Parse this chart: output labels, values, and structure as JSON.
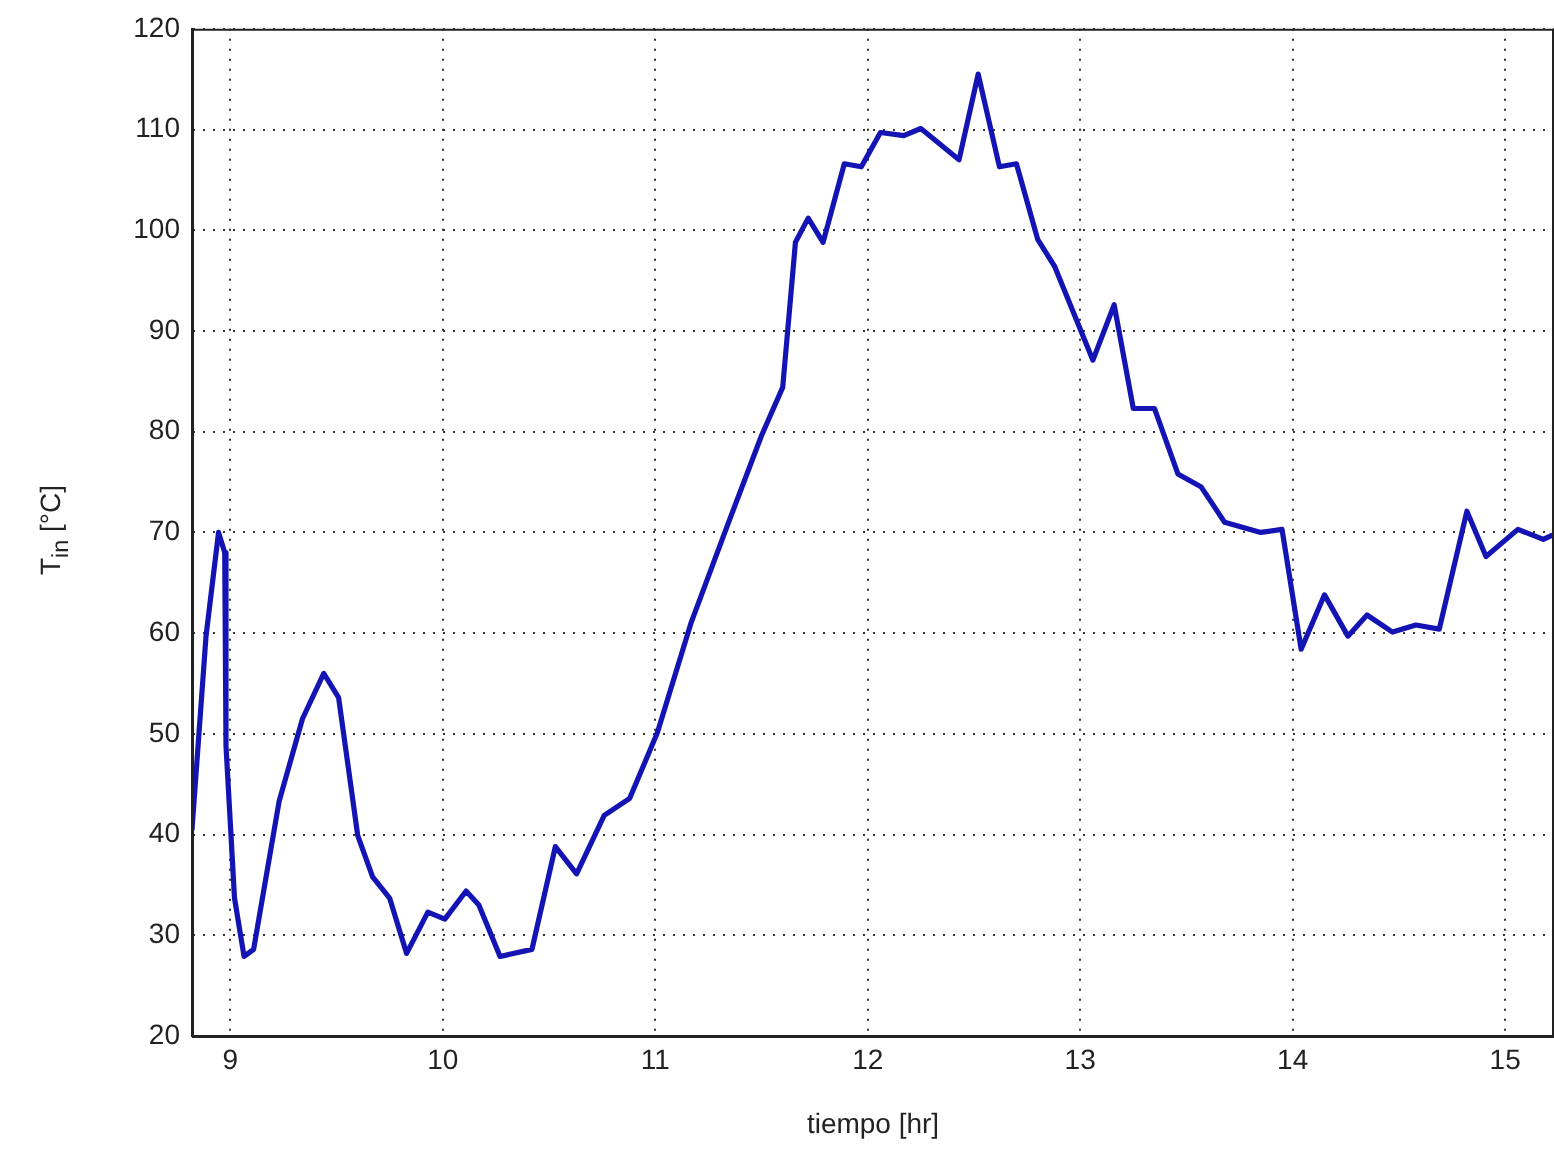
{
  "chart_data": {
    "type": "line",
    "xlabel": "tiempo [hr]",
    "ylabel": "T$_{in}$ [°C]",
    "xlim": [
      8.82,
      15.23
    ],
    "xticks": [
      9,
      10,
      11,
      12,
      13,
      14,
      15
    ],
    "ylim": [
      20,
      120
    ],
    "yticks": [
      20,
      30,
      40,
      50,
      60,
      70,
      80,
      90,
      100,
      110,
      120
    ],
    "grid": true,
    "legend": false,
    "marker": "none",
    "line_style": "solid",
    "series": [
      {
        "color": "#1414b4",
        "x": [
          8.82,
          8.886,
          8.945,
          8.974,
          8.98,
          9.02,
          9.065,
          9.11,
          9.23,
          9.34,
          9.44,
          9.51,
          9.6,
          9.67,
          9.75,
          9.83,
          9.93,
          10.01,
          10.11,
          10.17,
          10.27,
          10.42,
          10.53,
          10.63,
          10.76,
          10.88,
          11.01,
          11.17,
          11.34,
          11.5,
          11.6,
          11.66,
          11.72,
          11.79,
          11.89,
          11.97,
          12.06,
          12.17,
          12.25,
          12.43,
          12.52,
          12.62,
          12.7,
          12.8,
          12.88,
          13.06,
          13.16,
          13.25,
          13.35,
          13.46,
          13.57,
          13.68,
          13.85,
          13.95,
          14.04,
          14.15,
          14.26,
          14.35,
          14.47,
          14.58,
          14.69,
          14.82,
          14.91,
          15.06,
          15.18,
          15.22
        ],
        "values": [
          40.5,
          59.7,
          70,
          68,
          48.8,
          33.7,
          27.9,
          28.6,
          43.3,
          51.5,
          56,
          53.6,
          39.9,
          35.8,
          33.7,
          28.2,
          32.3,
          31.6,
          34.4,
          33,
          27.9,
          28.6,
          38.8,
          36.1,
          41.9,
          43.6,
          50.1,
          61.1,
          70.7,
          79.6,
          84.4,
          98.8,
          101.2,
          98.8,
          106.6,
          106.3,
          109.7,
          109.4,
          110.1,
          107,
          115.5,
          106.3,
          106.6,
          99.1,
          96.4,
          87.1,
          92.6,
          82.3,
          82.3,
          75.8,
          74.5,
          71,
          70,
          70.3,
          58.4,
          63.8,
          59.7,
          61.8,
          60.1,
          60.8,
          60.4,
          72.1,
          67.6,
          70.3,
          69.3,
          69.7
        ]
      }
    ]
  }
}
